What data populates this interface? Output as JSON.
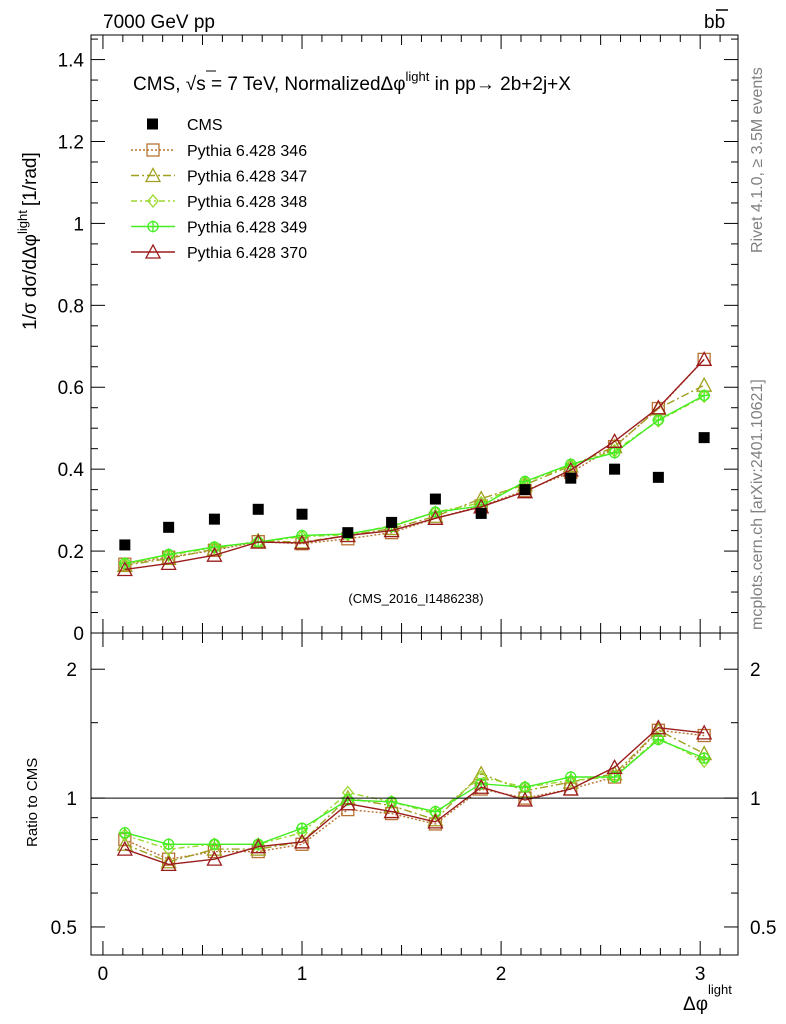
{
  "header": {
    "left": "7000 GeV pp",
    "right_base": "b",
    "right_bar": "b"
  },
  "side_text": {
    "rivet": "Rivet 4.1.0, ≥ 3.5M events",
    "mcplots": "mcplots.cern.ch [arXiv:2401.10621]"
  },
  "chart_data": {
    "type": "scatter",
    "title_parts": {
      "prefix": "CMS, ",
      "sqrt": "√",
      "s_expr": "s = 7 TeV, NormalizedΔφ",
      "sup": "light",
      "suffix": " in pp→  2b+2j+X"
    },
    "watermark": "(CMS_2016_I1486238)",
    "ylabel_main": "1/σ dσ/dΔφ",
    "ylabel_sup": "light",
    "ylabel_unit": "[1/rad]",
    "ylabel_ratio": "Ratio to CMS",
    "xlabel": "Δφ",
    "xlabel_sup": "light",
    "xlim": [
      -0.06,
      3.19
    ],
    "ylim_main": [
      0,
      1.46
    ],
    "ylim_ratio": [
      0.43,
      2.43
    ],
    "main_yticks": [
      {
        "v": 0,
        "label": "0"
      },
      {
        "v": 0.2,
        "label": "0.2"
      },
      {
        "v": 0.4,
        "label": "0.4"
      },
      {
        "v": 0.6,
        "label": "0.6"
      },
      {
        "v": 0.8,
        "label": "0.8"
      },
      {
        "v": 1.0,
        "label": "1"
      },
      {
        "v": 1.2,
        "label": "1.2"
      },
      {
        "v": 1.4,
        "label": "1.4"
      }
    ],
    "ratio_yticks": [
      {
        "v": 0.5,
        "label": "0.5"
      },
      {
        "v": 1,
        "label": "1"
      },
      {
        "v": 2,
        "label": "2"
      }
    ],
    "xticks": [
      {
        "v": 0,
        "label": "0"
      },
      {
        "v": 1,
        "label": "1"
      },
      {
        "v": 2,
        "label": "2"
      },
      {
        "v": 3,
        "label": "3"
      }
    ],
    "x": [
      0.11,
      0.33,
      0.56,
      0.78,
      1.0,
      1.23,
      1.45,
      1.67,
      1.9,
      2.12,
      2.35,
      2.57,
      2.79,
      3.02
    ],
    "data": {
      "name": "CMS",
      "values": [
        0.215,
        0.258,
        0.278,
        0.302,
        0.29,
        0.245,
        0.27,
        0.327,
        0.292,
        0.35,
        0.378,
        0.4,
        0.38,
        0.477
      ]
    },
    "series": [
      {
        "name": "Pythia 6.428 346",
        "color": "#b87333",
        "marker": "square",
        "dash": "2,2",
        "values": [
          0.168,
          0.185,
          0.202,
          0.223,
          0.218,
          0.23,
          0.245,
          0.28,
          0.31,
          0.348,
          0.392,
          0.455,
          0.548,
          0.668
        ],
        "ratio": [
          0.8,
          0.72,
          0.75,
          0.75,
          0.78,
          0.94,
          0.92,
          0.87,
          1.05,
          1.0,
          1.05,
          1.12,
          1.44,
          1.4
        ]
      },
      {
        "name": "Pythia 6.428 347",
        "color": "#a0a020",
        "marker": "triangle",
        "dash": "8,3,2,3",
        "values": [
          0.165,
          0.182,
          0.205,
          0.225,
          0.222,
          0.238,
          0.255,
          0.285,
          0.328,
          0.362,
          0.408,
          0.455,
          0.548,
          0.605
        ],
        "ratio": [
          0.78,
          0.71,
          0.76,
          0.76,
          0.79,
          1.0,
          0.96,
          0.89,
          1.14,
          1.04,
          1.09,
          1.14,
          1.44,
          1.27
        ]
      },
      {
        "name": "Pythia 6.428 348",
        "color": "#9ad82c",
        "marker": "diamond",
        "dash": "6,3,2,3",
        "values": [
          0.168,
          0.19,
          0.208,
          0.222,
          0.235,
          0.24,
          0.262,
          0.295,
          0.318,
          0.368,
          0.41,
          0.445,
          0.518,
          0.578
        ],
        "ratio": [
          0.82,
          0.76,
          0.78,
          0.78,
          0.83,
          1.03,
          0.98,
          0.92,
          1.12,
          1.06,
          1.1,
          1.12,
          1.38,
          1.22
        ]
      },
      {
        "name": "Pythia 6.428 349",
        "color": "#44ee22",
        "marker": "cross",
        "dash": "",
        "values": [
          0.17,
          0.192,
          0.21,
          0.222,
          0.238,
          0.242,
          0.26,
          0.295,
          0.31,
          0.37,
          0.412,
          0.44,
          0.52,
          0.58
        ],
        "ratio": [
          0.83,
          0.78,
          0.78,
          0.78,
          0.85,
          0.99,
          0.98,
          0.93,
          1.08,
          1.06,
          1.12,
          1.12,
          1.37,
          1.24
        ]
      },
      {
        "name": "Pythia 6.428 370",
        "color": "#9b1c1c",
        "marker": "triangle",
        "dash": "",
        "values": [
          0.155,
          0.17,
          0.19,
          0.222,
          0.22,
          0.238,
          0.25,
          0.28,
          0.308,
          0.345,
          0.398,
          0.468,
          0.55,
          0.668
        ],
        "ratio": [
          0.76,
          0.7,
          0.72,
          0.77,
          0.79,
          0.97,
          0.93,
          0.88,
          1.06,
          0.99,
          1.05,
          1.18,
          1.46,
          1.42
        ]
      }
    ]
  }
}
